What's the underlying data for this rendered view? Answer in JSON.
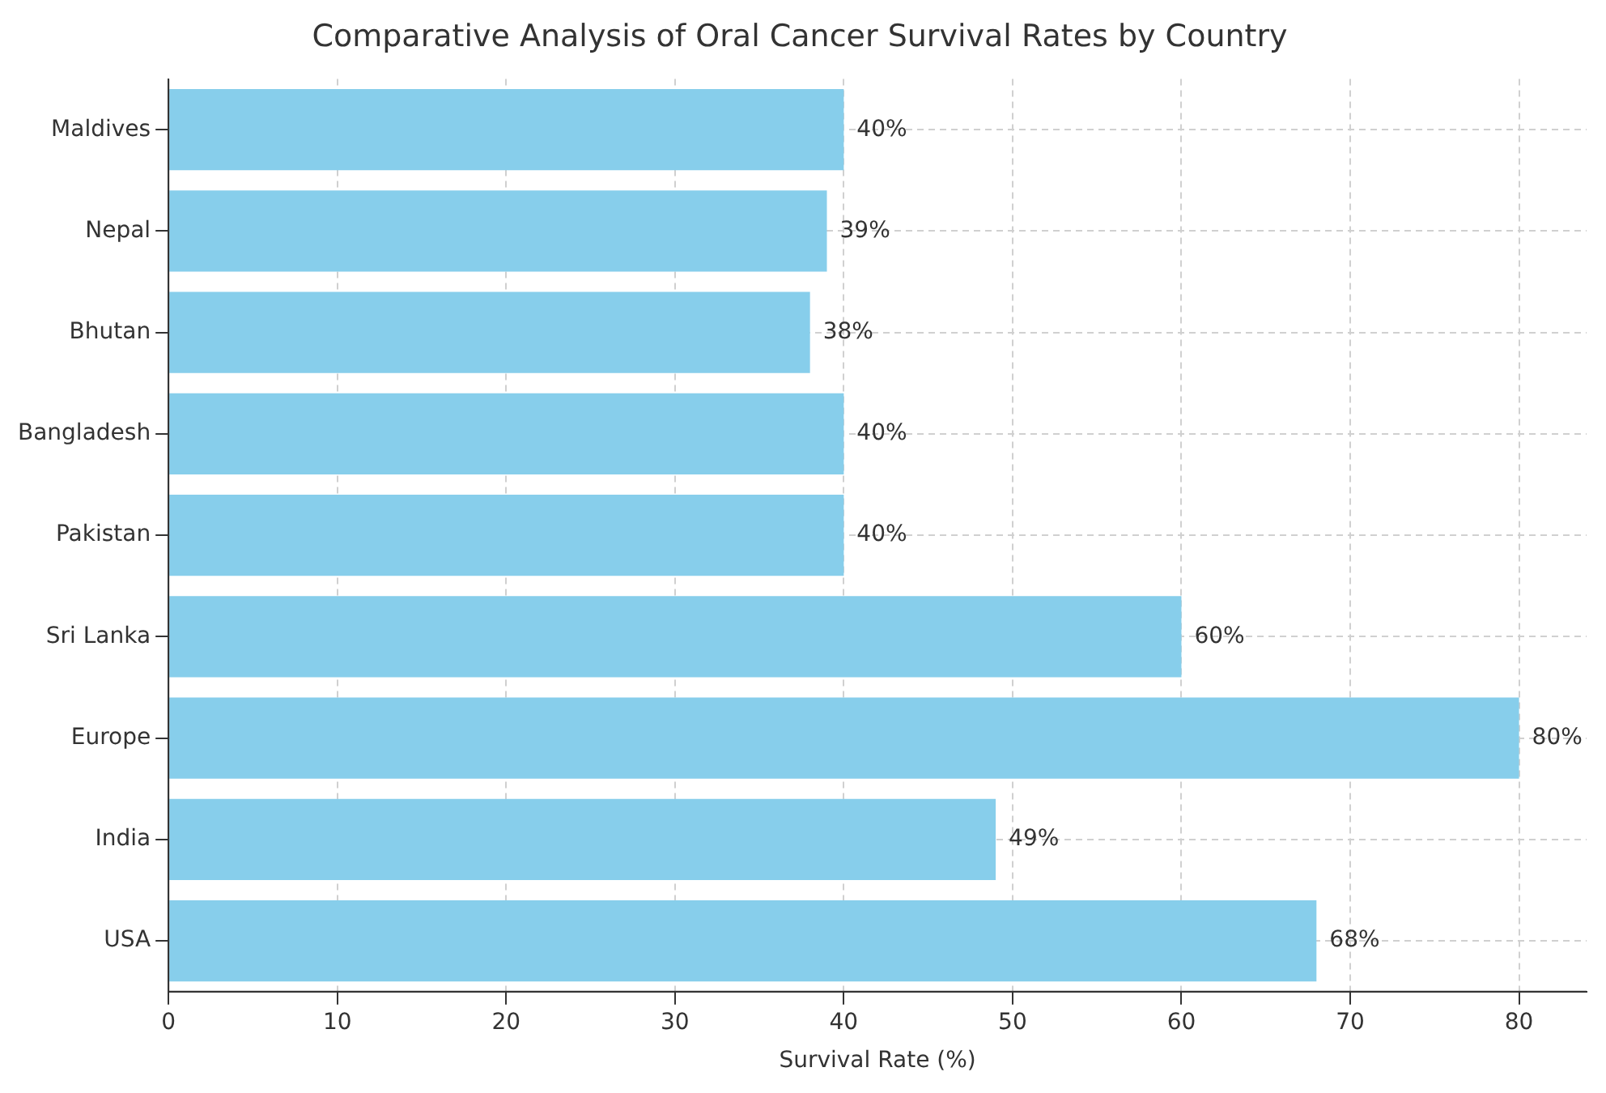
{
  "chart_data": {
    "type": "bar",
    "orientation": "horizontal",
    "title": "Comparative Analysis of Oral Cancer Survival Rates by Country",
    "xlabel": "Survival Rate (%)",
    "categories": [
      "Maldives",
      "Nepal",
      "Bhutan",
      "Bangladesh",
      "Pakistan",
      "Sri Lanka",
      "Europe",
      "India",
      "USA"
    ],
    "values": [
      40,
      39,
      38,
      40,
      40,
      60,
      80,
      49,
      68
    ],
    "value_labels": [
      "40%",
      "39%",
      "38%",
      "40%",
      "40%",
      "60%",
      "80%",
      "49%",
      "68%"
    ],
    "color": "#87ceeb",
    "xlim": [
      0,
      84
    ],
    "xticks": [
      0,
      10,
      20,
      30,
      40,
      50,
      60,
      70,
      80
    ],
    "grid": true
  }
}
